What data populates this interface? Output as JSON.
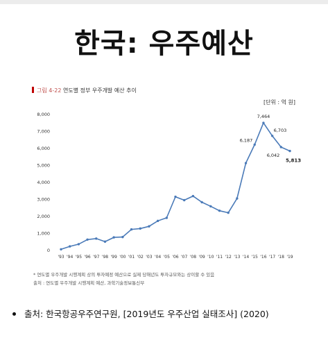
{
  "slide": {
    "title": "한국: 우주예산",
    "source": "출처: 한국항공우주연구원, [2019년도 우주산업 실태조사] (2020)"
  },
  "figure": {
    "caption_num": "그림 4-22",
    "caption_text": "연도별 정부 우주개발 예산 추이",
    "unit": "[단위 : 억 원]",
    "note1": "* 연도별 우주개발 시행계획 상의 투자예정 예산으로 실제 당해년도 투자규모와는 상이할 수 있음",
    "note2": "출처 : 연도별 우주개발 시행계획 예산, 과학기술정보통신부"
  },
  "chart_data": {
    "type": "line",
    "x": [
      "'93",
      "'94",
      "'95",
      "'96",
      "'97",
      "'98",
      "'99",
      "'00",
      "'01",
      "'02",
      "'03",
      "'04",
      "'05",
      "'06",
      "'07",
      "'08",
      "'09",
      "'10",
      "'11",
      "'12",
      "'13",
      "'14",
      "'15",
      "'16",
      "'17",
      "'18",
      "'19"
    ],
    "values": [
      30,
      200,
      330,
      600,
      660,
      480,
      730,
      750,
      1200,
      1250,
      1380,
      1700,
      1880,
      3120,
      2920,
      3160,
      2800,
      2560,
      2300,
      2180,
      3020,
      5100,
      6187,
      7464,
      6703,
      6042,
      5813
    ],
    "point_labels": [
      {
        "index": 22,
        "text": "6,187"
      },
      {
        "index": 23,
        "text": "7,464"
      },
      {
        "index": 24,
        "text": "6,703"
      },
      {
        "index": 25,
        "text": "6,042"
      },
      {
        "index": 26,
        "text": "5,813"
      }
    ],
    "y_ticks": [
      "0",
      "1,000",
      "2,000",
      "3,000",
      "4,000",
      "5,000",
      "6,000",
      "7,000",
      "8,000"
    ],
    "ylim": [
      0,
      8000
    ],
    "grid": false,
    "line_color": "#4a7ab8"
  }
}
